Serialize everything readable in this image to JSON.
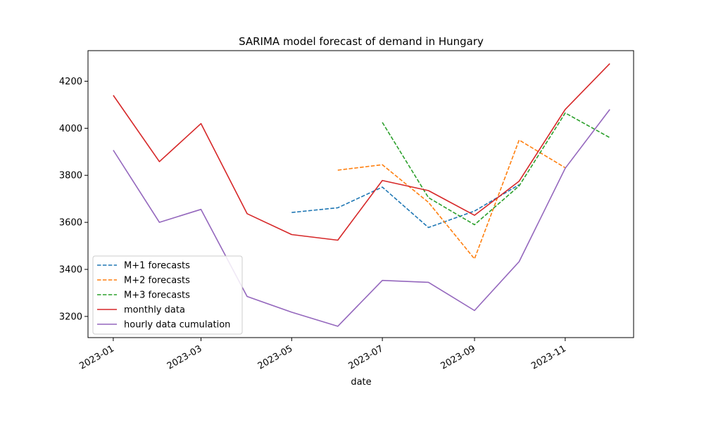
{
  "chart_data": {
    "type": "line",
    "title": "SARIMA model forecast of demand in Hungary",
    "xlabel": "date",
    "ylabel": "",
    "x_ticks": [
      "2023-01",
      "2023-03",
      "2023-05",
      "2023-07",
      "2023-09",
      "2023-11"
    ],
    "y_ticks": [
      3200,
      3400,
      3600,
      3800,
      4000,
      4200
    ],
    "xlim": [
      "2022-12-15",
      "2023-12-17"
    ],
    "ylim": [
      3110,
      4330
    ],
    "grid": false,
    "legend_position": "lower-left",
    "series": [
      {
        "name": "M+1 forecasts",
        "color": "#1f77b4",
        "style": "dashed",
        "x": [
          "2023-05-01",
          "2023-06-01",
          "2023-07-01",
          "2023-08-01",
          "2023-09-01",
          "2023-10-01"
        ],
        "values": [
          3642,
          3662,
          3750,
          3578,
          3648,
          3760
        ]
      },
      {
        "name": "M+2 forecasts",
        "color": "#ff7f0e",
        "style": "dashed",
        "x": [
          "2023-06-01",
          "2023-07-01",
          "2023-08-01",
          "2023-09-01",
          "2023-10-01",
          "2023-11-01"
        ],
        "values": [
          3822,
          3845,
          3685,
          3445,
          3950,
          3832
        ]
      },
      {
        "name": "M+3 forecasts",
        "color": "#2ca02c",
        "style": "dashed",
        "x": [
          "2023-07-01",
          "2023-08-01",
          "2023-09-01",
          "2023-10-01",
          "2023-11-01",
          "2023-12-01"
        ],
        "values": [
          4025,
          3705,
          3590,
          3755,
          4065,
          3960
        ]
      },
      {
        "name": "monthly data",
        "color": "#d62728",
        "style": "solid",
        "x": [
          "2023-01-01",
          "2023-02-01",
          "2023-03-01",
          "2023-04-01",
          "2023-05-01",
          "2023-06-01",
          "2023-07-01",
          "2023-08-01",
          "2023-09-01",
          "2023-10-01",
          "2023-11-01",
          "2023-12-01"
        ],
        "values": [
          4140,
          3858,
          4020,
          3637,
          3548,
          3524,
          3778,
          3735,
          3630,
          3775,
          4080,
          4275
        ]
      },
      {
        "name": "hourly data cumulation",
        "color": "#9467bd",
        "style": "solid",
        "x": [
          "2023-01-01",
          "2023-02-01",
          "2023-03-01",
          "2023-04-01",
          "2023-05-01",
          "2023-06-01",
          "2023-07-01",
          "2023-08-01",
          "2023-09-01",
          "2023-10-01",
          "2023-11-01",
          "2023-12-01"
        ],
        "values": [
          3907,
          3600,
          3655,
          3285,
          3218,
          3158,
          3353,
          3345,
          3225,
          3433,
          3830,
          4080
        ]
      }
    ]
  }
}
